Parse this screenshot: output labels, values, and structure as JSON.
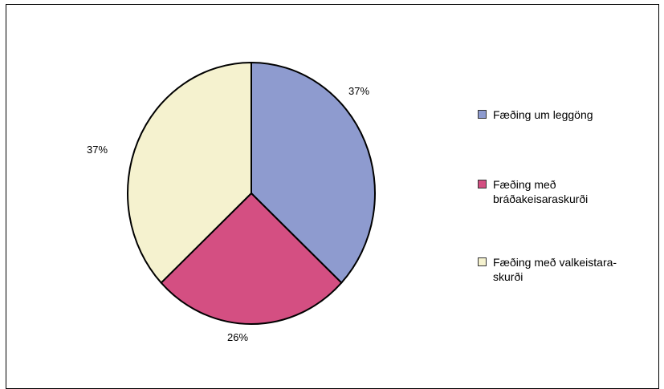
{
  "chart_data": {
    "type": "pie",
    "slices": [
      {
        "name": "Fæðing um leggöng",
        "value": 37,
        "label": "37%",
        "color": "#8e9bcf"
      },
      {
        "name": "Fæðing með bráðakeisaraskurði",
        "value": 26,
        "label": "26%",
        "color": "#d44f82"
      },
      {
        "name": "Fæðing með valkeistara-skurði",
        "value": 37,
        "label": "37%",
        "color": "#f5f2cf"
      }
    ],
    "legend_position": "right",
    "outline_color": "#000000"
  }
}
